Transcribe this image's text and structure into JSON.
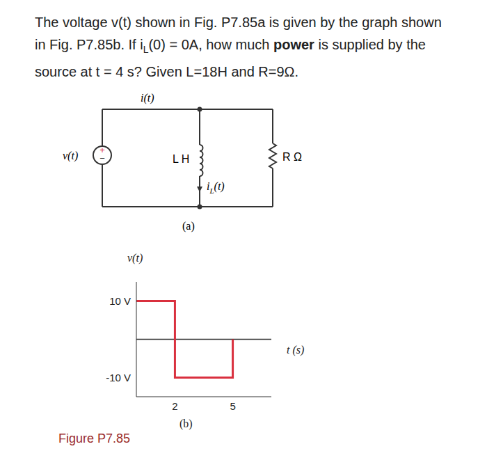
{
  "problem": {
    "lines": [
      [
        {
          "text": "The voltage v(t) shown in Fig. P7.85a is given by the graph shown"
        }
      ],
      [
        {
          "text": "in Fig. P7.85b. If i"
        },
        {
          "text": "L",
          "sub": true
        },
        {
          "text": "(0) = 0A, how much "
        },
        {
          "text": "power",
          "bold": true
        },
        {
          "text": " is supplied by the"
        }
      ],
      [
        {
          "text": "source at t = 4 s? Given L=18H and R=9Ω."
        }
      ]
    ]
  },
  "circuit": {
    "source_label": "v(t)",
    "source_plus": "+",
    "source_minus": "−",
    "current_label": "i(t)",
    "inductor_label": "L H",
    "inductor_current": [
      {
        "text": "i"
      },
      {
        "text": "L",
        "sub": true
      },
      {
        "text": "(t)"
      }
    ],
    "resistor_label": "R Ω",
    "caption": "(a)"
  },
  "chart_data": {
    "type": "line",
    "x": [
      0,
      2,
      2,
      5,
      5
    ],
    "values": [
      10,
      10,
      -10,
      -10,
      0
    ],
    "color": "#d9303e",
    "xlim": [
      0,
      7
    ],
    "ylim": [
      -15,
      15
    ],
    "xticks": [
      2,
      5
    ],
    "yticks": [
      {
        "value": 10,
        "label": "10 V"
      },
      {
        "value": -10,
        "label": "-10 V"
      }
    ],
    "xlabel": "t (s)",
    "ylabel": "v(t)",
    "grid": false
  },
  "graph_caption": "(b)",
  "figure_caption": "Figure P7.85"
}
